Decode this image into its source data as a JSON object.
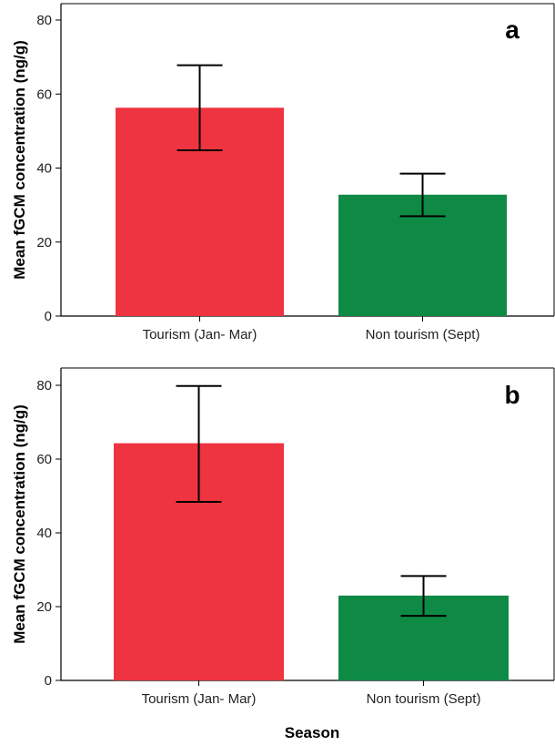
{
  "xlabel": "Season",
  "chart_data": [
    {
      "type": "bar",
      "panel": "a",
      "categories": [
        "Tourism (Jan- Mar)",
        "Non tourism (Sept)"
      ],
      "values": [
        56.3,
        32.8
      ],
      "error_low": [
        44.8,
        27.0
      ],
      "error_high": [
        67.8,
        38.5
      ],
      "colors": [
        "#EE3440",
        "#0F8A44"
      ],
      "ylabel": "Mean fGCM concentration (ng/g)",
      "xlabel": "",
      "ylim": [
        0,
        80
      ],
      "yticks": [
        "0",
        "20",
        "40",
        "60",
        "80"
      ],
      "grid": false
    },
    {
      "type": "bar",
      "panel": "b",
      "categories": [
        "Tourism (Jan- Mar)",
        "Non tourism (Sept)"
      ],
      "values": [
        64.3,
        23.0
      ],
      "error_low": [
        48.4,
        17.5
      ],
      "error_high": [
        79.8,
        28.3
      ],
      "colors": [
        "#EE3440",
        "#0F8A44"
      ],
      "ylabel": "Mean fGCM concentration (ng/g)",
      "xlabel": "Season",
      "ylim": [
        0,
        80
      ],
      "yticks": [
        "0",
        "20",
        "40",
        "60",
        "80"
      ],
      "grid": false
    }
  ]
}
